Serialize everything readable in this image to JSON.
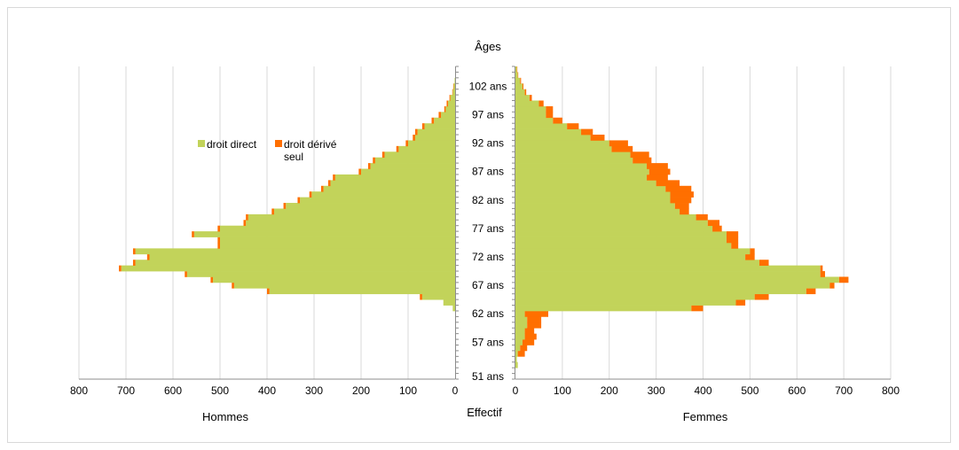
{
  "chart_data": {
    "type": "bar",
    "orientation": "horizontal",
    "title": "Âges",
    "xlabel": "Effectif",
    "left_panel_label": "Hommes",
    "right_panel_label": "Femmes",
    "xlim": [
      0,
      800
    ],
    "x_ticks": [
      "800",
      "700",
      "600",
      "500",
      "400",
      "300",
      "200",
      "100",
      "0",
      "0",
      "100",
      "200",
      "300",
      "400",
      "500",
      "600",
      "700",
      "800"
    ],
    "age_tick_labels": [
      "51 ans",
      "57 ans",
      "62 ans",
      "67 ans",
      "72 ans",
      "77 ans",
      "82 ans",
      "87 ans",
      "92 ans",
      "97 ans",
      "102 ans"
    ],
    "ages": [
      51,
      52,
      53,
      54,
      55,
      56,
      57,
      58,
      59,
      60,
      61,
      62,
      63,
      64,
      65,
      66,
      67,
      68,
      69,
      70,
      71,
      72,
      73,
      74,
      75,
      76,
      77,
      78,
      79,
      80,
      81,
      82,
      83,
      84,
      85,
      86,
      87,
      88,
      89,
      90,
      91,
      92,
      93,
      94,
      95,
      96,
      97,
      98,
      99,
      100,
      101,
      102,
      103,
      104,
      105
    ],
    "legend": [
      {
        "label": "droit direct",
        "color": "#c2d35a"
      },
      {
        "label": "droit dérivé seul",
        "color": "#ff6f00"
      }
    ],
    "series": [
      {
        "name": "droit direct",
        "color": "#c2d35a",
        "hommes": [
          0,
          0,
          0,
          0,
          0,
          0,
          0,
          0,
          0,
          0,
          0,
          0,
          5,
          25,
          70,
          395,
          470,
          515,
          570,
          710,
          680,
          650,
          680,
          500,
          500,
          555,
          500,
          445,
          440,
          385,
          360,
          330,
          305,
          280,
          265,
          255,
          200,
          180,
          170,
          150,
          120,
          100,
          85,
          80,
          65,
          45,
          30,
          20,
          15,
          10,
          5,
          3,
          1,
          0,
          0
        ],
        "femmes": [
          0,
          0,
          5,
          3,
          5,
          10,
          15,
          20,
          20,
          25,
          25,
          20,
          375,
          470,
          510,
          620,
          670,
          690,
          650,
          650,
          520,
          490,
          500,
          460,
          450,
          450,
          420,
          410,
          385,
          350,
          340,
          330,
          330,
          320,
          300,
          280,
          285,
          280,
          250,
          245,
          205,
          200,
          160,
          140,
          110,
          80,
          65,
          65,
          50,
          30,
          20,
          15,
          10,
          5,
          3
        ]
      },
      {
        "name": "droit dérivé seul",
        "color": "#ff6f00",
        "hommes": [
          0,
          0,
          0,
          0,
          0,
          0,
          0,
          0,
          0,
          0,
          0,
          0,
          0,
          0,
          5,
          5,
          5,
          5,
          5,
          5,
          5,
          5,
          5,
          5,
          5,
          5,
          5,
          5,
          5,
          5,
          5,
          5,
          5,
          5,
          5,
          5,
          5,
          5,
          5,
          5,
          5,
          5,
          5,
          5,
          5,
          5,
          5,
          3,
          3,
          2,
          1,
          1,
          0,
          0,
          0
        ],
        "femmes": [
          0,
          0,
          0,
          0,
          15,
          15,
          25,
          25,
          20,
          30,
          30,
          50,
          25,
          20,
          30,
          20,
          10,
          20,
          10,
          5,
          20,
          20,
          10,
          15,
          25,
          25,
          20,
          25,
          25,
          20,
          30,
          45,
          50,
          55,
          50,
          45,
          45,
          45,
          40,
          40,
          45,
          40,
          30,
          25,
          25,
          20,
          15,
          15,
          10,
          5,
          3,
          2,
          2,
          1,
          1
        ]
      }
    ]
  }
}
